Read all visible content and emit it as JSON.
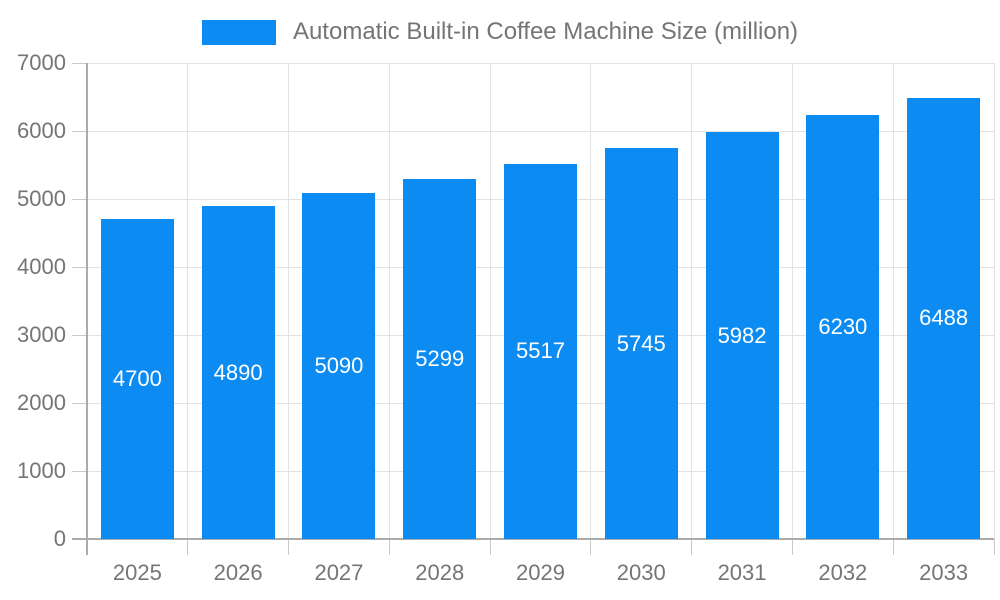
{
  "legend": {
    "label": "Automatic Built-in Coffee Machine Size (million)"
  },
  "chart_data": {
    "type": "bar",
    "title": "Automatic Built-in Coffee Machine Size (million)",
    "categories": [
      "2025",
      "2026",
      "2027",
      "2028",
      "2029",
      "2030",
      "2031",
      "2032",
      "2033"
    ],
    "values": [
      4700,
      4890,
      5090,
      5299,
      5517,
      5745,
      5982,
      6230,
      6488
    ],
    "xlabel": "",
    "ylabel": "",
    "ylim": [
      0,
      7000
    ],
    "ytick_step": 1000,
    "yticks": [
      0,
      1000,
      2000,
      3000,
      4000,
      5000,
      6000,
      7000
    ],
    "grid": true,
    "legend_position": "top-center",
    "bar_color": "#0c8cf2",
    "bar_label_color": "#ffffff",
    "axis_text_color": "#757575",
    "gridline_color": "#e2e2e2",
    "axis_line_color": "#ababab"
  }
}
